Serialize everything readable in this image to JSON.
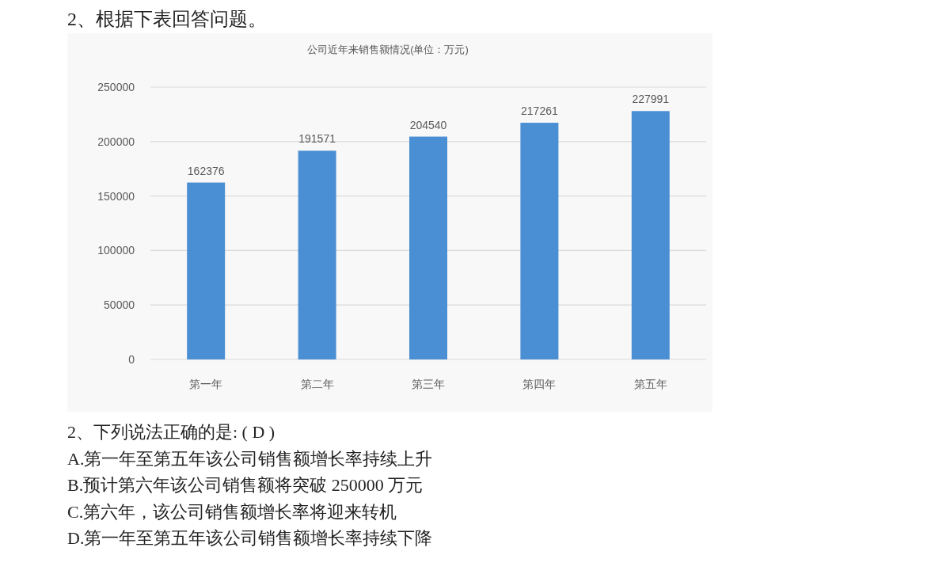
{
  "chart_data": {
    "type": "bar",
    "title": "公司近年来销售额情况(单位：万元)",
    "categories": [
      "第一年",
      "第二年",
      "第三年",
      "第四年",
      "第五年"
    ],
    "values": [
      162376,
      191571,
      204540,
      217261,
      227991
    ],
    "color": "#4a8fd4",
    "ylim": [
      0,
      250000
    ],
    "yticks": [
      0,
      50000,
      100000,
      150000,
      200000,
      250000
    ],
    "grid": "y",
    "data_labels": true,
    "annotations": [
      "2、根据下表回答问题。",
      "2、下列说法正确的是: ( D )",
      "A.第一年至第五年该公司销售额增长率持续上升",
      "B.预计第六年该公司销售额将突破 250000 万元",
      "C.第六年，该公司销售额增长率将迎来转机",
      "D.第一年至第五年该公司销售额增长率持续下降"
    ]
  }
}
